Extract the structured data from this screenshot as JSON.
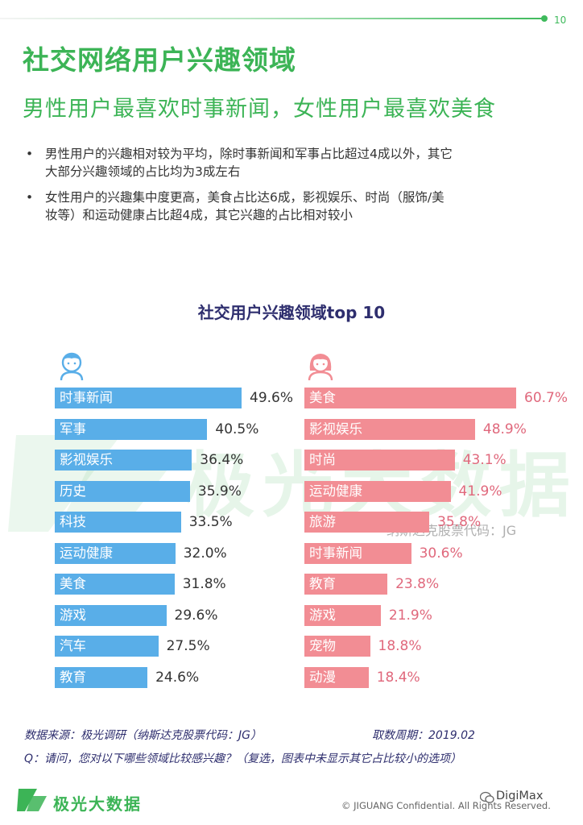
{
  "page_number": "10",
  "title": "社交网络用户兴趣领域",
  "subtitle": "男性用户最喜欢时事新闻，女性用户最喜欢美食",
  "bullets": [
    {
      "line1": "男性用户的兴趣相对较为平均，除时事新闻和军事占比超过4成以外，其它",
      "line2": "大部分兴趣领域的占比均为3成左右"
    },
    {
      "line1": "女性用户的兴趣集中度更高，美食占比达6成，影视娱乐、时尚（服饰/美",
      "line2": "妆等）和运动健康占比超4成，其它兴趣的占比相对较小"
    }
  ],
  "bullet_symbol": "•",
  "chart_data": {
    "type": "bar",
    "orientation": "horizontal",
    "title": "社交用户兴趣领域top 10",
    "value_unit": "%",
    "groups": [
      {
        "icon": "male-user-icon",
        "color": "#59aee8",
        "categories": [
          "时事新闻",
          "军事",
          "影视娱乐",
          "历史",
          "科技",
          "运动健康",
          "美食",
          "游戏",
          "汽车",
          "教育"
        ],
        "values": [
          49.6,
          40.5,
          36.4,
          35.9,
          33.5,
          32.0,
          31.8,
          29.6,
          27.5,
          24.6
        ],
        "value_labels": [
          "49.6%",
          "40.5%",
          "36.4%",
          "35.9%",
          "33.5%",
          "32.0%",
          "31.8%",
          "29.6%",
          "27.5%",
          "24.6%"
        ]
      },
      {
        "icon": "female-user-icon",
        "color": "#f28d94",
        "categories": [
          "美食",
          "影视娱乐",
          "时尚",
          "运动健康",
          "旅游",
          "时事新闻",
          "教育",
          "游戏",
          "宠物",
          "动漫"
        ],
        "values": [
          60.7,
          48.9,
          43.1,
          41.9,
          35.8,
          30.6,
          23.8,
          21.9,
          18.8,
          18.4
        ],
        "value_labels": [
          "60.7%",
          "48.9%",
          "43.1%",
          "41.9%",
          "35.8%",
          "30.6%",
          "23.8%",
          "21.9%",
          "18.8%",
          "18.4%"
        ]
      }
    ]
  },
  "watermark": {
    "text": "极光大数据",
    "code": "纳斯达克股票代码：JG"
  },
  "source": {
    "label": "数据来源：极光调研（纳斯达克股票代码：JG）",
    "period": "取数周期：2019.02",
    "question": "Q：请问，您对以下哪些领域比较感兴趣？（复选，图表中未显示其它占比较小的选项）"
  },
  "footer": {
    "brand": "极光大数据",
    "copyright": "© JIGUANG Confidential. All Rights Reserved.",
    "account": "DigiMax"
  },
  "colors": {
    "accent": "#3cb456",
    "male": "#59aee8",
    "female": "#f28d94",
    "female_value": "#e0687c",
    "chart_title": "#2e2e6e"
  }
}
